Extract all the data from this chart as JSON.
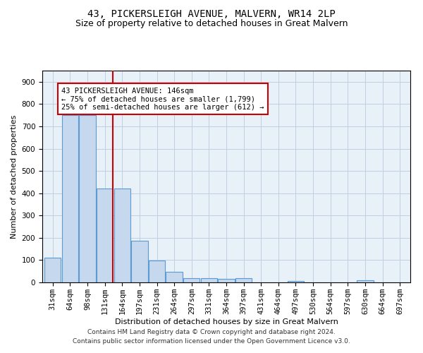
{
  "title": "43, PICKERSLEIGH AVENUE, MALVERN, WR14 2LP",
  "subtitle": "Size of property relative to detached houses in Great Malvern",
  "xlabel": "Distribution of detached houses by size in Great Malvern",
  "ylabel": "Number of detached properties",
  "footer_line1": "Contains HM Land Registry data © Crown copyright and database right 2024.",
  "footer_line2": "Contains public sector information licensed under the Open Government Licence v3.0.",
  "bin_labels": [
    "31sqm",
    "64sqm",
    "98sqm",
    "131sqm",
    "164sqm",
    "197sqm",
    "231sqm",
    "264sqm",
    "297sqm",
    "331sqm",
    "364sqm",
    "397sqm",
    "431sqm",
    "464sqm",
    "497sqm",
    "530sqm",
    "564sqm",
    "597sqm",
    "630sqm",
    "664sqm",
    "697sqm"
  ],
  "bar_values": [
    112,
    750,
    750,
    420,
    420,
    187,
    98,
    47,
    20,
    20,
    15,
    18,
    0,
    0,
    5,
    0,
    0,
    0,
    8,
    0,
    0
  ],
  "bar_color": "#c5d8ed",
  "bar_edgecolor": "#5b9bd5",
  "vline_color": "#cc0000",
  "vline_x_index": 3.48,
  "ylim": [
    0,
    950
  ],
  "yticks": [
    0,
    100,
    200,
    300,
    400,
    500,
    600,
    700,
    800,
    900
  ],
  "annotation_text": "43 PICKERSLEIGH AVENUE: 146sqm\n← 75% of detached houses are smaller (1,799)\n25% of semi-detached houses are larger (612) →",
  "annotation_box_color": "#ffffff",
  "annotation_box_edgecolor": "#cc0000",
  "grid_color": "#c0cfe0",
  "background_color": "#e8f0f8",
  "title_fontsize": 10,
  "subtitle_fontsize": 9,
  "axis_label_fontsize": 8,
  "tick_fontsize": 7.5,
  "annotation_fontsize": 7.5,
  "footer_fontsize": 6.5
}
